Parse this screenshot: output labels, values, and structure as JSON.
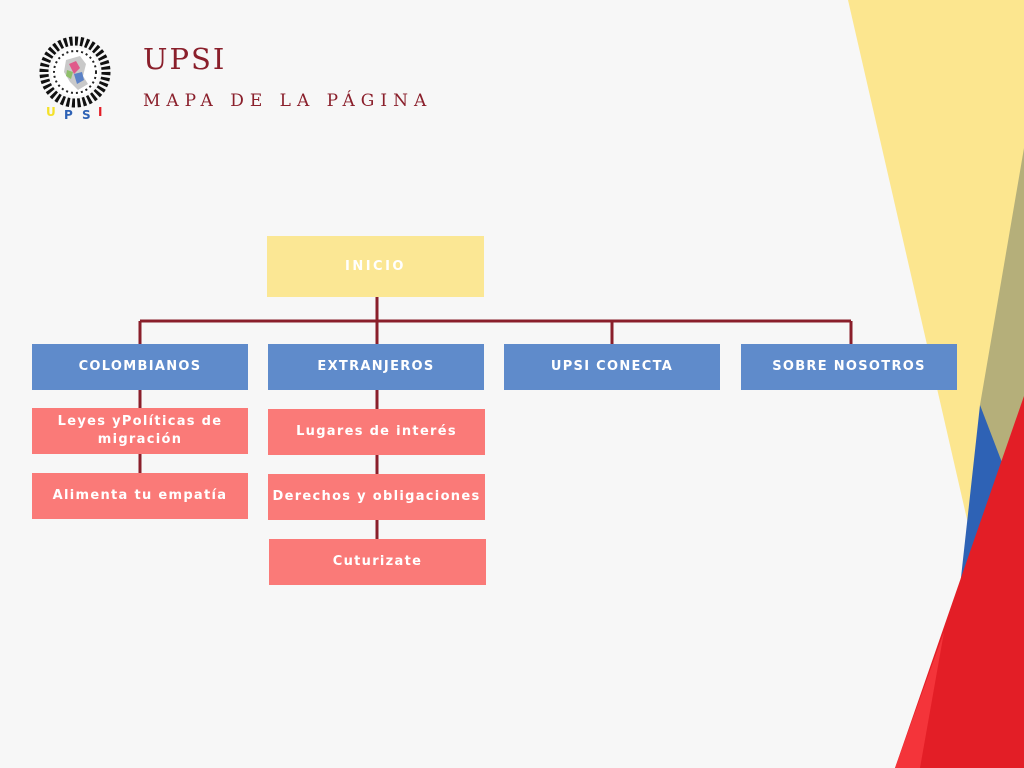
{
  "header": {
    "title": "UPSI",
    "subtitle": "MAPA DE LA PÁGINA"
  },
  "logo": {
    "letters": [
      "U",
      "P",
      "S",
      "I"
    ]
  },
  "sitemap": {
    "root": "INICIO",
    "categories": [
      {
        "label": "COLOMBIANOS",
        "children": [
          "Leyes yPolíticas de migración",
          "Alimenta tu empatía"
        ]
      },
      {
        "label": "EXTRANJEROS",
        "children": [
          "Lugares de interés",
          "Derechos y obligaciones",
          "Cuturizate"
        ]
      },
      {
        "label": "UPSI CONECTA",
        "children": []
      },
      {
        "label": "SOBRE NOSOTROS",
        "children": []
      }
    ]
  },
  "colors": {
    "background": "#f7f7f7",
    "title": "#8a1f2b",
    "connector": "#8a1f2b",
    "root_box": "#fbe794",
    "category_box": "#5f8bcb",
    "leaf_box": "#fa7a78",
    "flag_yellow": "#fce68f",
    "flag_blue": "#2e62b5",
    "flag_red": "#e31e26"
  }
}
